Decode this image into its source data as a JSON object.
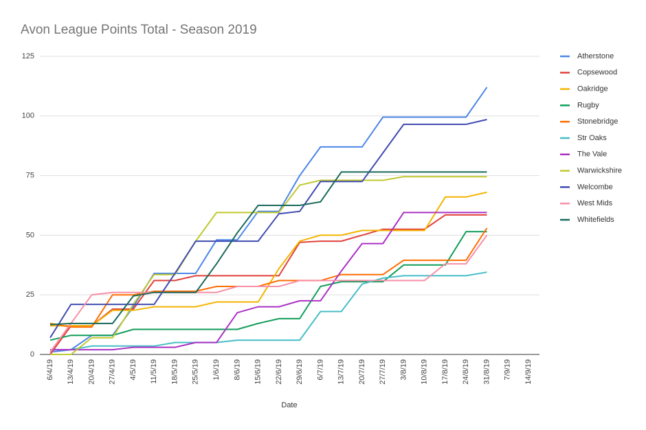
{
  "chart_data": {
    "type": "line",
    "title": "Avon League Points Total - Season 2019",
    "xlabel": "Date",
    "categories": [
      "6/4/19",
      "13/4/19",
      "20/4/19",
      "27/4/19",
      "4/5/19",
      "11/5/19",
      "18/5/19",
      "25/5/19",
      "1/6/19",
      "8/6/19",
      "15/6/19",
      "22/6/19",
      "29/6/19",
      "6/7/19",
      "13/7/19",
      "20/7/19",
      "27/7/19",
      "3/8/19",
      "10/8/19",
      "17/8/19",
      "24/8/19",
      "31/8/19",
      "7/9/19",
      "14/9/19"
    ],
    "ylim": [
      0,
      125
    ],
    "yticks": [
      0,
      25,
      50,
      75,
      100,
      125
    ],
    "grid": true,
    "legend": "right",
    "series": [
      {
        "name": "Atherstone",
        "color": "#4a86e8",
        "values": [
          1,
          2,
          8,
          8,
          20,
          34,
          34,
          34,
          48,
          48,
          60,
          60,
          75,
          87,
          87,
          87,
          99.5,
          99.5,
          99.5,
          99.5,
          99.5,
          112,
          null,
          null
        ]
      },
      {
        "name": "Copsewood",
        "color": "#e0403a",
        "values": [
          0,
          12,
          12,
          19,
          19,
          31,
          31,
          33,
          33,
          33,
          33,
          33,
          47,
          47.5,
          47.5,
          50,
          52.5,
          52.5,
          52.5,
          58.5,
          58.5,
          58.5,
          null,
          null
        ]
      },
      {
        "name": "Oakridge",
        "color": "#f4b400",
        "values": [
          12,
          12,
          12,
          18.5,
          18.5,
          20,
          20,
          20,
          22,
          22,
          22,
          36,
          47.5,
          50,
          50,
          52,
          52,
          52,
          52,
          66,
          66,
          68,
          null,
          null
        ]
      },
      {
        "name": "Rugby",
        "color": "#0f9d58",
        "values": [
          6,
          8,
          8,
          8,
          10.5,
          10.5,
          10.5,
          10.5,
          10.5,
          10.5,
          13,
          15,
          15,
          28.5,
          30.5,
          30.5,
          30.5,
          37.5,
          37.5,
          37.5,
          51.5,
          51.5,
          null,
          null
        ]
      },
      {
        "name": "Stonebridge",
        "color": "#ff6d00",
        "values": [
          13,
          11.5,
          11.5,
          25,
          25,
          26.5,
          26.5,
          26.5,
          28.5,
          28.5,
          28.5,
          31,
          31,
          31,
          33.5,
          33.5,
          33.5,
          39.5,
          39.5,
          39.5,
          39.5,
          53,
          null,
          null
        ]
      },
      {
        "name": "Str Oaks",
        "color": "#46bdc6",
        "values": [
          2,
          2,
          3.5,
          3.5,
          3.5,
          3.5,
          5,
          5,
          5,
          6,
          6,
          6,
          6,
          18,
          18,
          29.5,
          32,
          33,
          33,
          33,
          33,
          34.5,
          null,
          null
        ]
      },
      {
        "name": "The Vale",
        "color": "#ab30c4",
        "values": [
          2,
          2,
          2,
          2,
          3,
          3,
          3,
          5,
          5,
          17.5,
          20,
          20,
          22.5,
          22.5,
          35,
          46.5,
          46.5,
          59.5,
          59.5,
          59.5,
          59.5,
          59.5,
          null,
          null
        ]
      },
      {
        "name": "Warwickshire",
        "color": "#c0c82e",
        "values": [
          0,
          0,
          7,
          7,
          21,
          33.5,
          33.5,
          47.5,
          59.5,
          59.5,
          59.5,
          59.5,
          71,
          73,
          73,
          73,
          73,
          74.5,
          74.5,
          74.5,
          74.5,
          74.5,
          null,
          null
        ]
      },
      {
        "name": "Welcombe",
        "color": "#3f4bb0",
        "values": [
          7,
          21,
          21,
          21,
          21,
          21,
          34,
          47.5,
          47.5,
          47.5,
          47.5,
          59,
          60,
          72.5,
          72.5,
          72.5,
          84.5,
          96.5,
          96.5,
          96.5,
          96.5,
          98.5,
          null,
          null
        ]
      },
      {
        "name": "West Mids",
        "color": "#f78fa7",
        "values": [
          1,
          13,
          25,
          26,
          26,
          26,
          26,
          26,
          26,
          28.5,
          28.5,
          28.5,
          31,
          31,
          31,
          31,
          31,
          31,
          31,
          38,
          38,
          50,
          null,
          null
        ]
      },
      {
        "name": "Whitefields",
        "color": "#18695a",
        "values": [
          12.5,
          13,
          13,
          13,
          24.5,
          26,
          26,
          26,
          38,
          51,
          62.5,
          62.5,
          62.5,
          64,
          76.5,
          76.5,
          76.5,
          76.5,
          76.5,
          76.5,
          76.5,
          76.5,
          null,
          null
        ]
      }
    ]
  }
}
